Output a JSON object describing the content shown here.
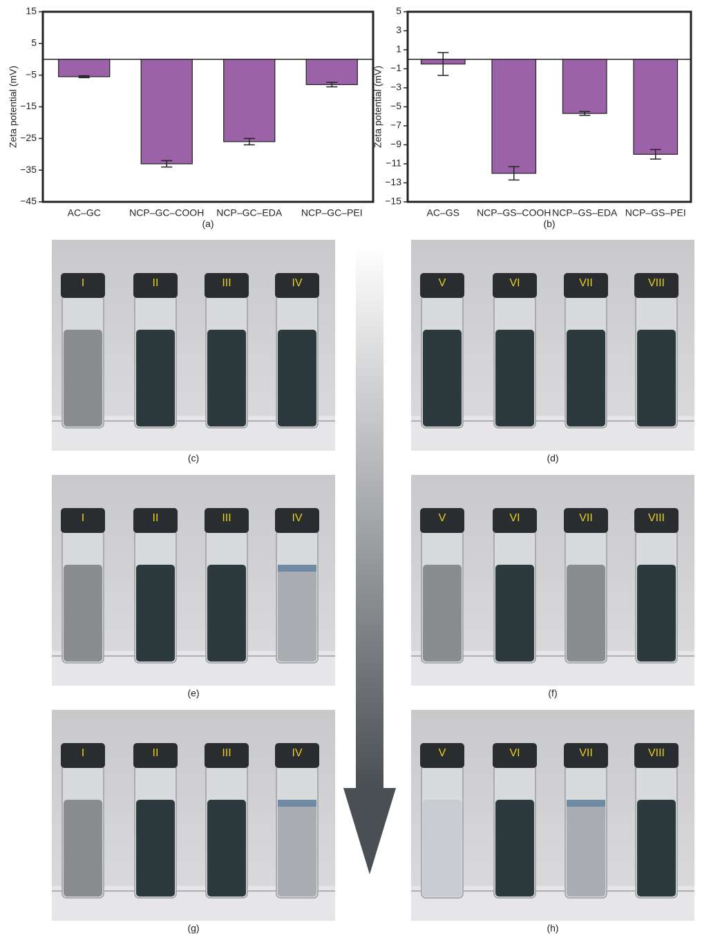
{
  "chart_data": [
    {
      "type": "bar",
      "y_label": "Zeta potential (mV)",
      "caption": "(a)",
      "categories": [
        "AC–GC",
        "NCP–GC–COOH",
        "NCP–GC–EDA",
        "NCP–GC–PEI"
      ],
      "values": [
        -5.5,
        -33,
        -26,
        -8
      ],
      "errors": [
        0.3,
        1,
        1,
        0.7
      ],
      "color": "#9b62a8",
      "ylim": [
        -45,
        15
      ],
      "yticks": [
        15,
        5,
        {
          "value": -5,
          "label": "−5"
        },
        {
          "value": -15,
          "label": "−15"
        },
        {
          "value": -25,
          "label": "−25"
        },
        {
          "value": -35,
          "label": "−35"
        },
        {
          "value": -45,
          "label": "−45"
        }
      ]
    },
    {
      "type": "bar",
      "y_label": "Zeta potential (mV)",
      "caption": "(b)",
      "categories": [
        "AC–GS",
        "NCP–GS–COOH",
        "NCP–GS–EDA",
        "NCP–GS–PEI"
      ],
      "values": [
        -0.5,
        -12,
        -5.7,
        -10
      ],
      "errors": [
        1.2,
        0.7,
        0.2,
        0.5
      ],
      "color": "#9b62a8",
      "ylim": [
        -15,
        5
      ],
      "yticks": [
        5,
        3,
        1,
        {
          "value": -1,
          "label": "−1"
        },
        {
          "value": -3,
          "label": "−3"
        },
        {
          "value": -5,
          "label": "−5"
        },
        {
          "value": -7,
          "label": "−7"
        },
        {
          "value": -9,
          "label": "−9"
        },
        {
          "value": -11,
          "label": "−11"
        },
        {
          "value": -13,
          "label": "−13"
        },
        {
          "value": -15,
          "label": "−15"
        }
      ]
    }
  ],
  "photos": [
    {
      "caption": "(c)",
      "labels": [
        "I",
        "II",
        "III",
        "IV"
      ]
    },
    {
      "caption": "(d)",
      "labels": [
        "V",
        "VI",
        "VII",
        "VIII"
      ]
    },
    {
      "caption": "(e)",
      "labels": [
        "I",
        "II",
        "III",
        "IV"
      ]
    },
    {
      "caption": "(f)",
      "labels": [
        "V",
        "VI",
        "VII",
        "VIII"
      ]
    },
    {
      "caption": "(g)",
      "labels": [
        "I",
        "II",
        "III",
        "IV"
      ]
    },
    {
      "caption": "(h)",
      "labels": [
        "V",
        "VI",
        "VII",
        "VIII"
      ]
    }
  ]
}
